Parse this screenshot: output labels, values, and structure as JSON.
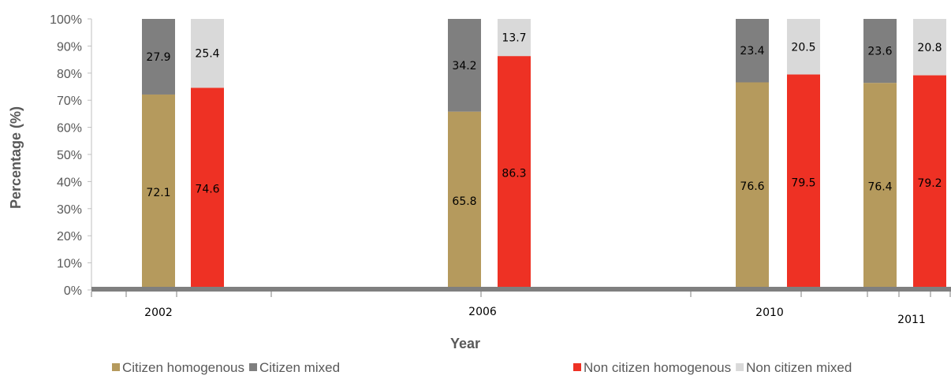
{
  "chart_data": {
    "type": "bar",
    "stacked": true,
    "xlabel": "Year",
    "ylabel": "Percentage (%)",
    "ylim": [
      0,
      100
    ],
    "yticks": [
      "0%",
      "10%",
      "20%",
      "30%",
      "40%",
      "50%",
      "60%",
      "70%",
      "80%",
      "90%",
      "100%"
    ],
    "categories": [
      "2002",
      "2006",
      "2010",
      "2011"
    ],
    "x_axis": "date",
    "stacks": [
      {
        "stack": "Citizen",
        "series": [
          {
            "name": "Citizen homogenous",
            "color": "#b59a5d",
            "values": [
              72.1,
              65.8,
              76.6,
              76.4
            ]
          },
          {
            "name": "Citizen mixed",
            "color": "#7f7f7f",
            "values": [
              27.9,
              34.2,
              23.4,
              23.6
            ]
          }
        ]
      },
      {
        "stack": "Non citizen",
        "series": [
          {
            "name": "Non citizen homogenous",
            "color": "#ee3124",
            "values": [
              74.6,
              86.3,
              79.5,
              79.2
            ]
          },
          {
            "name": "Non citizen mixed",
            "color": "#d9d9d9",
            "values": [
              25.4,
              13.7,
              20.5,
              20.8
            ]
          }
        ]
      }
    ],
    "data_labels": [
      [
        "72.1",
        "65.8",
        "76.6",
        "76.4"
      ],
      [
        "27.9",
        "34.2",
        "23.4",
        "23.6"
      ],
      [
        "74.6",
        "86.3",
        "79.5",
        "79.2"
      ],
      [
        "25.4",
        "13.7",
        "20.5",
        "20.8"
      ]
    ],
    "legend": {
      "placement": "bottom",
      "left_group": [
        "Citizen homogenous",
        "Citizen mixed"
      ],
      "right_group": [
        "Non citizen homogenous",
        "Non citizen mixed"
      ]
    },
    "grid": false
  }
}
